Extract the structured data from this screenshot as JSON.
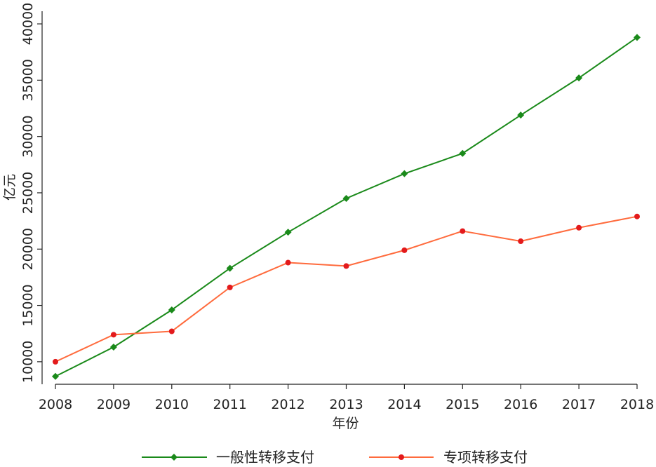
{
  "chart_data": {
    "type": "line",
    "title": "",
    "xlabel": "年份",
    "ylabel": "亿元",
    "x": [
      2008,
      2009,
      2010,
      2011,
      2012,
      2013,
      2014,
      2015,
      2016,
      2017,
      2018
    ],
    "x_tick_labels": [
      "2008",
      "2009",
      "2010",
      "2011",
      "2012",
      "2013",
      "2014",
      "2015",
      "2016",
      "2017",
      "2018"
    ],
    "xlim": [
      2008,
      2018
    ],
    "ylim": [
      8000,
      41000
    ],
    "y_ticks": [
      10000,
      15000,
      20000,
      25000,
      30000,
      35000,
      40000
    ],
    "y_tick_labels": [
      "10000",
      "15000",
      "20000",
      "25000",
      "30000",
      "35000",
      "40000"
    ],
    "grid": false,
    "legend_position": "bottom",
    "series": [
      {
        "name": "一般性转移支付",
        "color": "#1a8a1a",
        "marker": "diamond",
        "values": [
          8700,
          11300,
          14600,
          18300,
          21500,
          24500,
          26700,
          28500,
          31900,
          35200,
          38800
        ]
      },
      {
        "name": "专项转移支付",
        "color": "#ff6b3d",
        "marker_color": "#e31a1c",
        "marker": "circle",
        "values": [
          10000,
          12400,
          12700,
          16600,
          18800,
          18500,
          19900,
          21600,
          20700,
          21900,
          22900
        ]
      }
    ]
  }
}
